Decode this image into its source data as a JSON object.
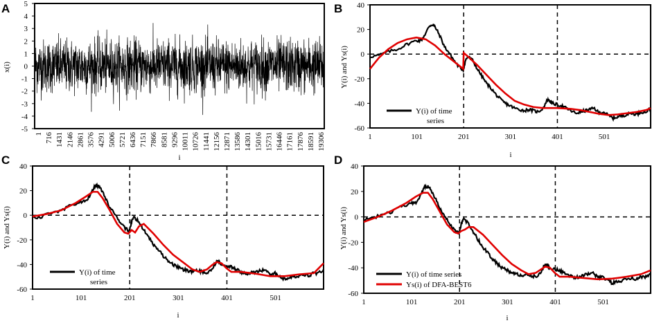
{
  "chart_data": [
    {
      "panel": "A",
      "type": "line",
      "ylabel": "x(i)",
      "xlabel": "i",
      "ylim": [
        -5,
        5
      ],
      "yticks": [
        5,
        4,
        3,
        2,
        1,
        0,
        -1,
        -2,
        -3,
        -4,
        -5
      ],
      "xtick_labels": [
        "1",
        "716",
        "1431",
        "2146",
        "2861",
        "3576",
        "4291",
        "5006",
        "5721",
        "6436",
        "7151",
        "7866",
        "8581",
        "9296",
        "10011",
        "10726",
        "11441",
        "12156",
        "12871",
        "13586",
        "14301",
        "15016",
        "15731",
        "16446",
        "17161",
        "17876",
        "18591",
        "19306"
      ],
      "n_points": 20000,
      "series": [
        {
          "color": "#000000",
          "amplitude_typical": 2.7,
          "amplitude_max": 3.9
        }
      ]
    },
    {
      "panel": "B",
      "type": "line",
      "ylabel": "Y(i) and Ys(i)",
      "xlabel": "i",
      "ylim": [
        -60,
        40
      ],
      "xlim": [
        1,
        600
      ],
      "yticks": [
        40,
        20,
        0,
        -20,
        -40,
        -60
      ],
      "xtick_labels": [
        "1",
        "101",
        "201",
        "301",
        "401",
        "501"
      ],
      "dividers": [
        201,
        401
      ],
      "legend": [
        "Y(i) of time series"
      ],
      "series": [
        {
          "color": "#000000",
          "x": [
            1,
            20,
            40,
            60,
            80,
            100,
            110,
            120,
            128,
            135,
            140,
            150,
            160,
            170,
            180,
            190,
            200,
            205,
            210,
            220,
            230,
            240,
            250,
            260,
            270,
            280,
            290,
            300,
            310,
            320,
            330,
            340,
            350,
            360,
            370,
            380,
            385,
            390,
            400,
            410,
            420,
            430,
            440,
            450,
            460,
            470,
            480,
            490,
            500,
            510,
            520,
            530,
            540,
            550,
            560,
            570,
            580,
            590,
            600
          ],
          "y": [
            -2,
            -1,
            2,
            4,
            8,
            11,
            11,
            17,
            23,
            24,
            22,
            15,
            6,
            1,
            -5,
            -10,
            -13,
            -5,
            -2,
            -5,
            -12,
            -18,
            -24,
            -28,
            -33,
            -37,
            -40,
            -42,
            -44,
            -45,
            -46,
            -45,
            -46,
            -47,
            -44,
            -37,
            -38,
            -40,
            -41,
            -42,
            -44,
            -46,
            -48,
            -47,
            -46,
            -45,
            -44,
            -48,
            -47,
            -50,
            -52,
            -51,
            -50,
            -49,
            -48,
            -49,
            -47,
            -47,
            -44
          ]
        },
        {
          "color": "#e00000",
          "x": [
            1,
            20,
            40,
            60,
            80,
            100,
            120,
            140,
            160,
            180,
            200,
            201,
            210,
            230,
            250,
            270,
            290,
            310,
            330,
            350,
            370,
            390,
            400,
            410,
            430,
            450,
            470,
            490,
            510,
            530,
            550,
            570,
            590,
            600
          ],
          "y": [
            -12,
            -3,
            4,
            9,
            12,
            13.5,
            12,
            7,
            0,
            -6,
            -12,
            1,
            -2,
            -9,
            -17,
            -25,
            -32,
            -38,
            -41,
            -43,
            -43.8,
            -43.8,
            -43.8,
            -44,
            -44.5,
            -45.5,
            -47,
            -48.5,
            -49.5,
            -49,
            -48,
            -47,
            -45.5,
            -44
          ]
        }
      ]
    },
    {
      "panel": "C",
      "type": "line",
      "ylabel": "Y(i) and Ys(i)",
      "xlabel": "i",
      "ylim": [
        -60,
        40
      ],
      "xlim": [
        1,
        600
      ],
      "yticks": [
        40,
        20,
        0,
        -20,
        -40,
        -60
      ],
      "xtick_labels": [
        "1",
        "101",
        "201",
        "301",
        "401",
        "501"
      ],
      "dividers": [
        201,
        401
      ],
      "legend": [
        "Y(i) of time series"
      ],
      "series": [
        {
          "color": "#000000",
          "x": [
            1,
            20,
            40,
            60,
            80,
            100,
            110,
            120,
            128,
            135,
            140,
            150,
            160,
            170,
            180,
            190,
            200,
            205,
            210,
            220,
            230,
            240,
            250,
            260,
            270,
            280,
            290,
            300,
            310,
            320,
            330,
            340,
            350,
            360,
            370,
            380,
            385,
            390,
            400,
            410,
            420,
            430,
            440,
            450,
            460,
            470,
            480,
            490,
            500,
            510,
            520,
            530,
            540,
            550,
            560,
            570,
            580,
            590,
            600
          ],
          "y": [
            -2,
            -1,
            2,
            4,
            8,
            11,
            11,
            17,
            23,
            24,
            22,
            15,
            6,
            1,
            -5,
            -10,
            -13,
            -5,
            -2,
            -5,
            -12,
            -18,
            -24,
            -28,
            -33,
            -37,
            -40,
            -42,
            -44,
            -45,
            -46,
            -45,
            -46,
            -47,
            -44,
            -37,
            -38,
            -40,
            -41,
            -42,
            -44,
            -46,
            -48,
            -47,
            -46,
            -45,
            -44,
            -48,
            -47,
            -50,
            -52,
            -51,
            -50,
            -49,
            -48,
            -49,
            -47,
            -47,
            -44
          ]
        },
        {
          "color": "#e00000",
          "x": [
            1,
            30,
            60,
            90,
            110,
            125,
            135,
            145,
            160,
            175,
            190,
            198,
            205,
            212,
            220,
            230,
            250,
            270,
            290,
            310,
            330,
            345,
            360,
            372,
            380,
            390,
            400,
            410,
            430,
            460,
            490,
            520,
            550,
            580,
            600
          ],
          "y": [
            -1,
            1,
            4,
            10,
            15,
            19,
            19,
            14,
            4,
            -7,
            -14,
            -15,
            -12,
            -14,
            -9,
            -7,
            -15,
            -24,
            -32,
            -38,
            -44,
            -46,
            -44,
            -40,
            -38,
            -39,
            -43,
            -46,
            -46,
            -47.5,
            -49.5,
            -49.5,
            -48,
            -47,
            -39
          ]
        }
      ]
    },
    {
      "panel": "D",
      "type": "line",
      "ylabel": "Y(i) and Ys(i)",
      "xlabel": "i",
      "ylim": [
        -60,
        40
      ],
      "xlim": [
        1,
        600
      ],
      "yticks": [
        40,
        20,
        0,
        -20,
        -40,
        -60
      ],
      "xtick_labels": [
        "1",
        "101",
        "201",
        "301",
        "401",
        "501"
      ],
      "dividers": [
        201,
        401
      ],
      "legend": [
        "Y(i) of time series",
        "Ys(i) of DFA-BEST6"
      ],
      "series": [
        {
          "color": "#000000",
          "x": [
            1,
            20,
            40,
            60,
            80,
            100,
            110,
            120,
            128,
            135,
            140,
            150,
            160,
            170,
            180,
            190,
            200,
            205,
            210,
            220,
            230,
            240,
            250,
            260,
            270,
            280,
            290,
            300,
            310,
            320,
            330,
            340,
            350,
            360,
            370,
            380,
            385,
            390,
            400,
            410,
            420,
            430,
            440,
            450,
            460,
            470,
            480,
            490,
            500,
            510,
            520,
            530,
            540,
            550,
            560,
            570,
            580,
            590,
            600
          ],
          "y": [
            -2,
            -1,
            2,
            4,
            8,
            11,
            11,
            17,
            23,
            24,
            22,
            15,
            6,
            1,
            -5,
            -10,
            -13,
            -5,
            -2,
            -5,
            -12,
            -18,
            -24,
            -28,
            -33,
            -37,
            -40,
            -42,
            -44,
            -45,
            -46,
            -45,
            -46,
            -47,
            -44,
            -37,
            -38,
            -40,
            -41,
            -42,
            -44,
            -46,
            -48,
            -47,
            -46,
            -45,
            -44,
            -48,
            -47,
            -50,
            -52,
            -51,
            -50,
            -49,
            -48,
            -49,
            -47,
            -47,
            -44
          ]
        },
        {
          "color": "#e00000",
          "x": [
            1,
            30,
            60,
            90,
            110,
            125,
            135,
            145,
            160,
            175,
            190,
            198,
            205,
            212,
            220,
            230,
            250,
            270,
            290,
            310,
            330,
            345,
            360,
            372,
            380,
            390,
            400,
            410,
            430,
            460,
            490,
            520,
            550,
            580,
            600
          ],
          "y": [
            -4,
            0,
            5,
            11,
            16,
            19,
            19,
            14,
            4,
            -6,
            -12,
            -13,
            -11,
            -10,
            -8,
            -8,
            -14,
            -22,
            -30,
            -37,
            -42,
            -45,
            -44,
            -41,
            -39,
            -40,
            -44,
            -47,
            -47,
            -48,
            -49,
            -48.5,
            -47,
            -45,
            -42
          ]
        }
      ]
    }
  ]
}
